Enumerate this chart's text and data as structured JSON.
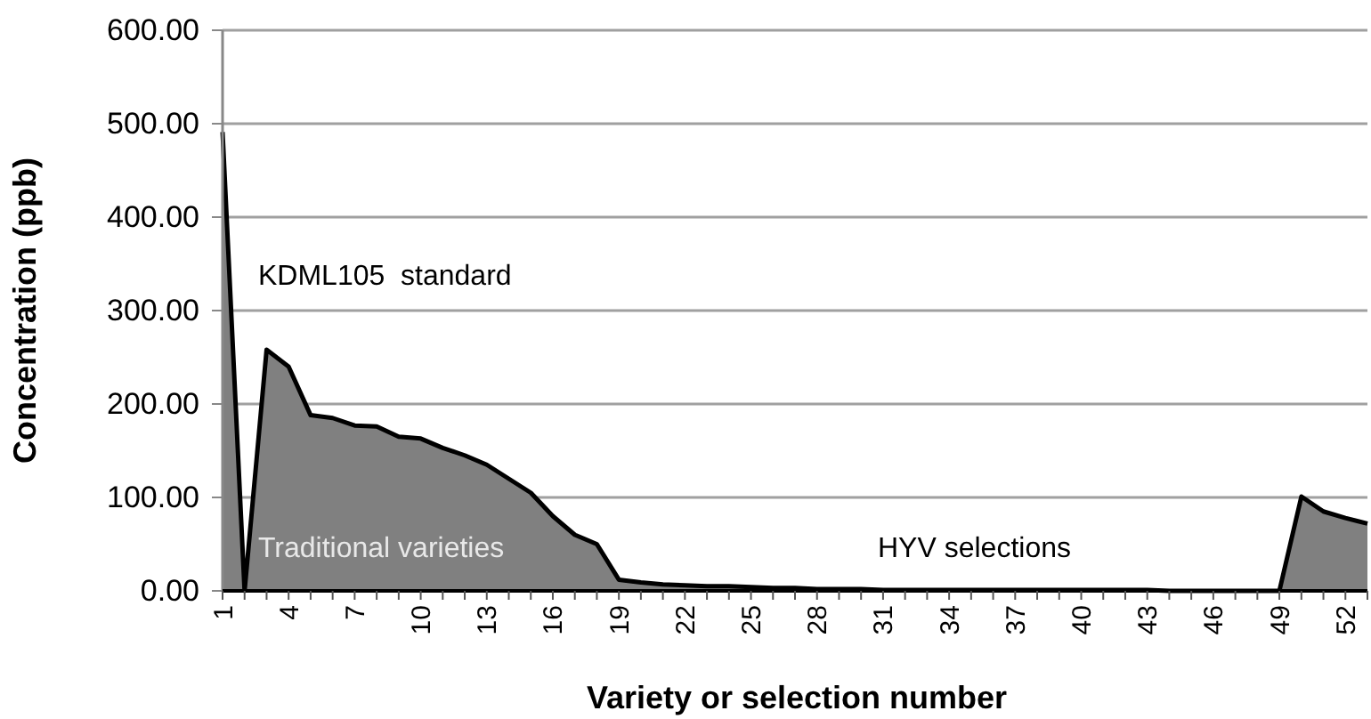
{
  "chart_data": {
    "type": "area",
    "xlabel": "Variety or selection number",
    "ylabel": "Concentration (ppb)",
    "categories": [
      "1",
      null,
      null,
      "4",
      null,
      null,
      "7",
      null,
      null,
      "10",
      null,
      null,
      "13",
      null,
      null,
      "16",
      null,
      null,
      "19",
      null,
      null,
      "22",
      null,
      null,
      "25",
      null,
      null,
      "28",
      null,
      null,
      "31",
      null,
      null,
      "34",
      null,
      null,
      "37",
      null,
      null,
      "40",
      null,
      null,
      "43",
      null,
      null,
      "46",
      null,
      null,
      "49",
      null,
      null,
      "52",
      null
    ],
    "series": [
      {
        "color": "#808080",
        "values": [
          491,
          0,
          258,
          240,
          188,
          185,
          177,
          176,
          165,
          163,
          153,
          145,
          135,
          120,
          105,
          80,
          60,
          50,
          12,
          9,
          7,
          6,
          5,
          5,
          4,
          3,
          3,
          2,
          2,
          2,
          1,
          1,
          1,
          1,
          1,
          1,
          1,
          1,
          1,
          1,
          1,
          1,
          1,
          0,
          0,
          0,
          0,
          0,
          0,
          101,
          85,
          78,
          72
        ]
      }
    ],
    "ylim": [
      0,
      600
    ],
    "yticks": [
      {
        "value": 0,
        "label": "0.00"
      },
      {
        "value": 100,
        "label": "100.00"
      },
      {
        "value": 200,
        "label": "200.00"
      },
      {
        "value": 300,
        "label": "300.00"
      },
      {
        "value": 400,
        "label": "400.00"
      },
      {
        "value": 500,
        "label": "500.00"
      },
      {
        "value": 600,
        "label": "600.00"
      }
    ],
    "grid": "y",
    "annotations": [
      "KDML105  standard",
      "Traditional varieties",
      "HYV selections"
    ]
  }
}
